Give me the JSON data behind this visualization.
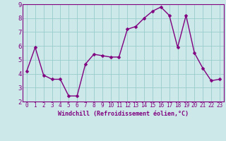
{
  "x": [
    0,
    1,
    2,
    3,
    4,
    5,
    6,
    7,
    8,
    9,
    10,
    11,
    12,
    13,
    14,
    15,
    16,
    17,
    18,
    19,
    20,
    21,
    22,
    23
  ],
  "y": [
    4.2,
    5.9,
    3.9,
    3.6,
    3.6,
    2.4,
    2.4,
    4.7,
    5.4,
    5.3,
    5.2,
    5.2,
    7.2,
    7.4,
    8.0,
    8.5,
    8.8,
    8.2,
    5.9,
    8.2,
    5.5,
    4.4,
    3.5,
    3.6
  ],
  "line_color": "#800080",
  "marker_color": "#800080",
  "bg_color": "#cce8e8",
  "grid_color": "#99cccc",
  "xlabel": "Windchill (Refroidissement éolien,°C)",
  "xlim": [
    -0.5,
    23.5
  ],
  "ylim": [
    2,
    9
  ],
  "yticks": [
    2,
    3,
    4,
    5,
    6,
    7,
    8,
    9
  ],
  "xticks": [
    0,
    1,
    2,
    3,
    4,
    5,
    6,
    7,
    8,
    9,
    10,
    11,
    12,
    13,
    14,
    15,
    16,
    17,
    18,
    19,
    20,
    21,
    22,
    23
  ],
  "tick_label_color": "#800080",
  "line_width": 1.0,
  "marker_size": 2.5,
  "xlabel_fontsize": 6.0,
  "tick_fontsize": 5.5,
  "ytick_fontsize": 6.5
}
